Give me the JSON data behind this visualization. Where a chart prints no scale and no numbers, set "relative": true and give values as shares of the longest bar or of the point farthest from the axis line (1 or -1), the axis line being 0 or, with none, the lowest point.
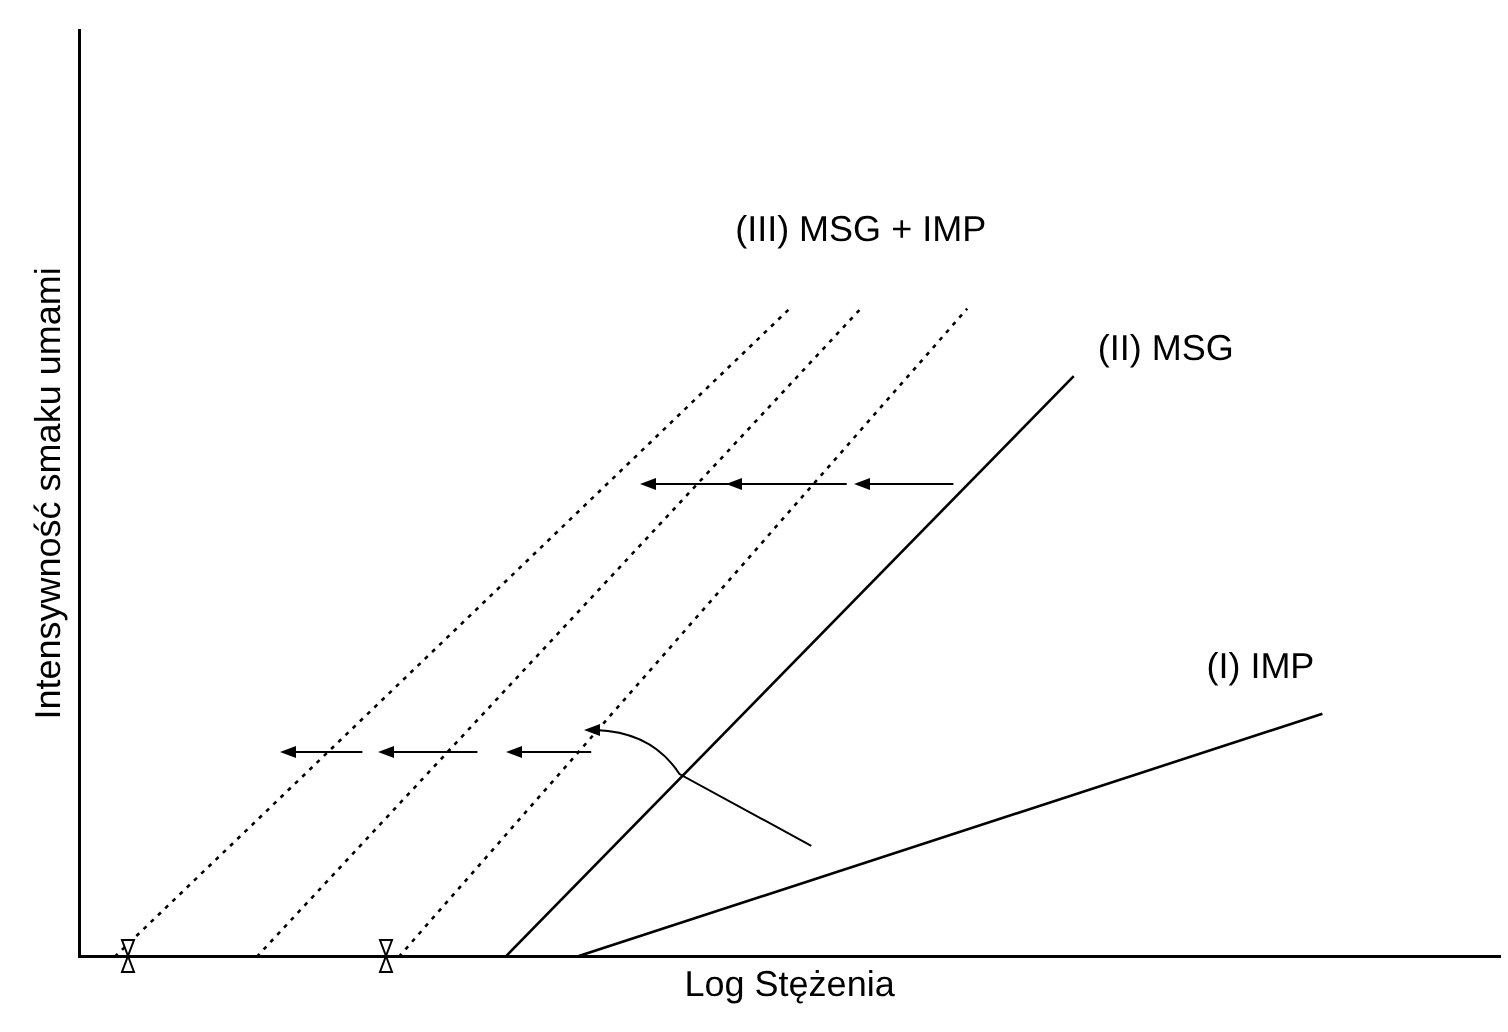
{
  "chart_data": {
    "type": "line",
    "relative": true,
    "xlabel": "Log Stężenia",
    "ylabel": "Intensywność smaku umami",
    "grid": false,
    "legend": false,
    "marker": "none",
    "categories": [
      null,
      null,
      null,
      null,
      null,
      null,
      null,
      null,
      null,
      null,
      null,
      null,
      null,
      null,
      null,
      null,
      null,
      null,
      null,
      null,
      null,
      null,
      null,
      null,
      null,
      null,
      null,
      null,
      null,
      null,
      null,
      null,
      null,
      null,
      null,
      null,
      null,
      null,
      null,
      null,
      null
    ],
    "series": [
      {
        "name": "(I) IMP",
        "color": "#000000",
        "line_style": "solid",
        "values": [
          null,
          null,
          null,
          null,
          null,
          null,
          null,
          null,
          null,
          null,
          null,
          null,
          null,
          null,
          0,
          null,
          null,
          null,
          null,
          null,
          null,
          null,
          null,
          null,
          null,
          null,
          null,
          null,
          null,
          null,
          null,
          null,
          null,
          null,
          null,
          0.375,
          null,
          null,
          null,
          null,
          null
        ]
      },
      {
        "name": "(II) MSG",
        "color": "#000000",
        "line_style": "solid",
        "values": [
          null,
          null,
          null,
          null,
          null,
          null,
          null,
          null,
          null,
          null,
          null,
          null,
          0,
          null,
          null,
          null,
          null,
          null,
          null,
          null,
          null,
          null,
          null,
          null,
          null,
          null,
          null,
          null,
          0.896,
          null,
          null,
          null,
          null,
          null,
          null,
          null,
          null,
          null,
          null,
          null,
          null
        ]
      },
      {
        "color": "#000000",
        "line_style": "dotted",
        "values": [
          null,
          null,
          null,
          null,
          null,
          null,
          null,
          null,
          null,
          0,
          null,
          null,
          null,
          null,
          null,
          null,
          null,
          null,
          null,
          null,
          null,
          null,
          null,
          null,
          null,
          1,
          null,
          null,
          null,
          null,
          null,
          null,
          null,
          null,
          null,
          null,
          null,
          null,
          null,
          null,
          null
        ]
      },
      {
        "name": "(III) MSG + IMP",
        "color": "#000000",
        "line_style": "dotted",
        "values": [
          null,
          null,
          null,
          null,
          null,
          0,
          null,
          null,
          null,
          null,
          null,
          null,
          null,
          null,
          null,
          null,
          null,
          null,
          null,
          null,
          null,
          null,
          1,
          null,
          null,
          null,
          null,
          null,
          null,
          null,
          null,
          null,
          null,
          null,
          null,
          null,
          null,
          null,
          null,
          null,
          null
        ]
      },
      {
        "color": "#000000",
        "line_style": "dotted",
        "values": [
          null,
          0,
          null,
          null,
          null,
          null,
          null,
          null,
          null,
          null,
          null,
          null,
          null,
          null,
          null,
          null,
          null,
          null,
          null,
          null,
          1,
          null,
          null,
          null,
          null,
          null,
          null,
          null,
          null,
          null,
          null,
          null,
          null,
          null,
          null,
          null,
          null,
          null,
          null,
          null,
          null
        ]
      }
    ]
  }
}
